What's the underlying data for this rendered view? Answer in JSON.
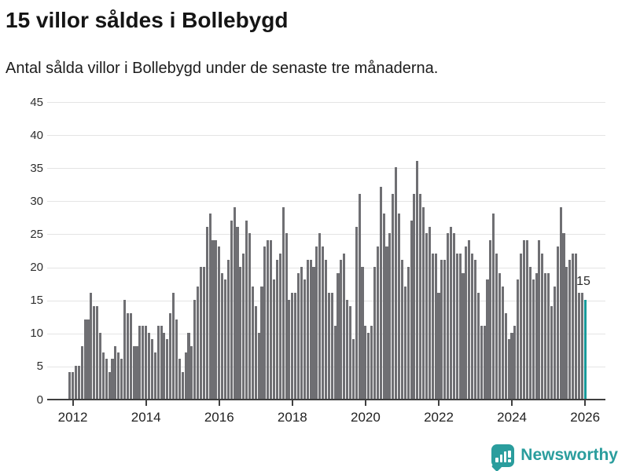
{
  "header": {
    "title": "15 villor såldes i Bollebygd",
    "subtitle": "Antal sålda villor i Bollebygd under de senaste tre månaderna."
  },
  "chart_data": {
    "type": "bar",
    "title": "15 villor såldes i Bollebygd",
    "subtitle": "Antal sålda villor i Bollebygd under de senaste tre månaderna.",
    "ylabel": "",
    "xlabel": "",
    "ylim": [
      0,
      45
    ],
    "grid": true,
    "y_ticks": [
      0,
      5,
      10,
      15,
      20,
      25,
      30,
      35,
      40,
      45
    ],
    "x_tick_labels": [
      "2012",
      "2014",
      "2016",
      "2018",
      "2020",
      "2022",
      "2024",
      "2026"
    ],
    "start_month": "2011-12",
    "end_month": "2026-01",
    "series": [
      {
        "name": "Antal sålda villor, rullande tre månader",
        "values": [
          4,
          4,
          5,
          5,
          8,
          12,
          12,
          16,
          14,
          14,
          10,
          7,
          6,
          4,
          6,
          8,
          7,
          6,
          15,
          13,
          13,
          8,
          8,
          11,
          11,
          11,
          10,
          9,
          7,
          11,
          11,
          10,
          9,
          13,
          16,
          12,
          6,
          4,
          7,
          10,
          8,
          15,
          17,
          20,
          20,
          26,
          28,
          24,
          24,
          23,
          19,
          18,
          21,
          27,
          29,
          26,
          20,
          22,
          27,
          25,
          17,
          14,
          10,
          17,
          23,
          24,
          24,
          18,
          21,
          22,
          29,
          25,
          15,
          16,
          16,
          19,
          20,
          18,
          21,
          21,
          20,
          23,
          25,
          23,
          21,
          16,
          16,
          11,
          19,
          21,
          22,
          15,
          14,
          9,
          26,
          31,
          20,
          11,
          10,
          11,
          20,
          23,
          32,
          28,
          23,
          25,
          31,
          35,
          28,
          21,
          17,
          20,
          27,
          31,
          36,
          31,
          29,
          25,
          26,
          22,
          22,
          16,
          21,
          21,
          25,
          26,
          25,
          22,
          22,
          19,
          23,
          24,
          22,
          21,
          16,
          11,
          11,
          18,
          24,
          28,
          22,
          19,
          17,
          13,
          9,
          10,
          11,
          18,
          22,
          24,
          24,
          20,
          18,
          19,
          24,
          22,
          19,
          19,
          14,
          17,
          23,
          29,
          25,
          20,
          21,
          22,
          22,
          16,
          16,
          15
        ]
      }
    ],
    "bar_color": "#6f6f73",
    "highlight": {
      "index_from_end": 0,
      "value": 15,
      "label": "15",
      "color": "#189b9b"
    },
    "legend": "none"
  },
  "annotation": {
    "last_value_label": "15"
  },
  "footer": {
    "brand": "Newsworthy",
    "brand_color": "#2a9d9d",
    "icon": "newsworthy-chart-bubble"
  }
}
